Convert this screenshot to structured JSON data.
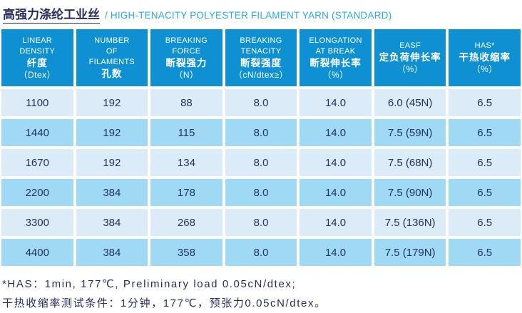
{
  "title": {
    "zh": "高强力涤纶工业丝",
    "en": "/ HIGH-TENACITY POLYESTER FILAMENT YARN (STANDARD)"
  },
  "table": {
    "columns": [
      {
        "lines": [
          "LINEAR",
          "DENSITY",
          "纤度",
          "（Dtex）"
        ]
      },
      {
        "lines": [
          "NUMBER",
          "OF",
          "FILAMENTS",
          "孔数"
        ]
      },
      {
        "lines": [
          "BREAKING",
          "FORCE",
          "断裂强力",
          "（N）"
        ]
      },
      {
        "lines": [
          "BREAKING",
          "TENACITY",
          "断裂强度",
          "（cN/dtex≥）"
        ]
      },
      {
        "lines": [
          "ELONGATION",
          "AT BREAK",
          "断裂伸长率",
          "（%）"
        ]
      },
      {
        "lines": [
          "EASF",
          "定负荷伸长率",
          "（%）"
        ]
      },
      {
        "lines": [
          "HAS*",
          "干热收缩率",
          "（%）"
        ]
      }
    ],
    "rows": [
      [
        "1100",
        "192",
        "88",
        "8.0",
        "14.0",
        "6.0 (45N)",
        "6.5"
      ],
      [
        "1440",
        "192",
        "115",
        "8.0",
        "14.0",
        "7.5 (59N)",
        "6.5"
      ],
      [
        "1670",
        "192",
        "134",
        "8.0",
        "14.0",
        "7.5 (68N)",
        "6.5"
      ],
      [
        "2200",
        "384",
        "178",
        "8.0",
        "14.0",
        "7.5 (90N)",
        "6.5"
      ],
      [
        "3300",
        "384",
        "268",
        "8.0",
        "14.0",
        "7.5 (136N)",
        "6.5"
      ],
      [
        "4400",
        "384",
        "358",
        "8.0",
        "14.0",
        "7.5 (179N)",
        "6.5"
      ]
    ]
  },
  "notes": [
    "*HAS：1min, 177℃, Preliminary load 0.05cN/dtex;",
    "干热收缩率测试条件：1分钟，177℃，预张力0.05cN/dtex。"
  ],
  "colors": {
    "header_bg": "#0e90d2",
    "row_light_bg": "#dcebf8",
    "row_dark_bg": "#9fd9f3",
    "cell_text": "#24335f",
    "title_zh_text": "#272e5f",
    "title_en_text": "#29aae2",
    "note_text": "#272e5f"
  }
}
